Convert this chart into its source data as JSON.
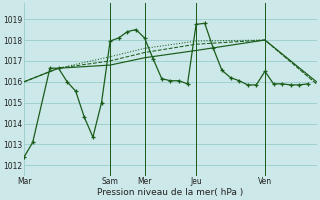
{
  "bg_color": "#cce8e8",
  "grid_color": "#99cccc",
  "line_color": "#1a5c1a",
  "xlabel": "Pression niveau de la mer( hPa )",
  "ylim": [
    1011.5,
    1019.75
  ],
  "yticks": [
    1012,
    1013,
    1014,
    1015,
    1016,
    1017,
    1018,
    1019
  ],
  "xtick_positions": [
    0,
    10,
    14,
    20,
    28,
    34
  ],
  "xtick_labels": [
    "Mar",
    "Sam",
    "Mer",
    "Jeu",
    "Ven",
    ""
  ],
  "vlines_x": [
    10,
    14,
    20,
    28
  ],
  "xmin": 0,
  "xmax": 34,
  "series_detail": {
    "x": [
      0,
      1,
      3,
      4,
      5,
      6,
      7,
      8,
      9,
      10,
      11,
      12,
      13,
      14,
      15,
      16,
      17,
      18,
      19,
      20,
      21,
      22,
      23,
      24,
      25,
      26,
      27,
      28,
      29,
      30,
      31,
      32,
      33
    ],
    "y": [
      1012.4,
      1013.1,
      1016.65,
      1016.65,
      1016.0,
      1015.55,
      1014.3,
      1013.35,
      1015.0,
      1017.95,
      1018.1,
      1018.4,
      1018.5,
      1018.1,
      1017.1,
      1016.15,
      1016.05,
      1016.05,
      1015.9,
      1018.75,
      1018.8,
      1017.6,
      1016.55,
      1016.2,
      1016.05,
      1015.85,
      1015.85,
      1016.5,
      1015.9,
      1015.9,
      1015.85,
      1015.85,
      1015.9
    ]
  },
  "series_line1": {
    "x": [
      0,
      4,
      10,
      14,
      20,
      28,
      34
    ],
    "y": [
      1016.0,
      1016.65,
      1016.8,
      1017.15,
      1017.5,
      1018.0,
      1016.0
    ]
  },
  "series_line2": {
    "x": [
      0,
      4,
      10,
      14,
      20,
      28,
      34
    ],
    "y": [
      1016.0,
      1016.65,
      1017.0,
      1017.4,
      1017.8,
      1018.0,
      1015.9
    ]
  },
  "series_line3": {
    "x": [
      0,
      4,
      10,
      14,
      20,
      28,
      34
    ],
    "y": [
      1016.0,
      1016.65,
      1017.2,
      1017.6,
      1017.95,
      1018.0,
      1015.9
    ]
  }
}
